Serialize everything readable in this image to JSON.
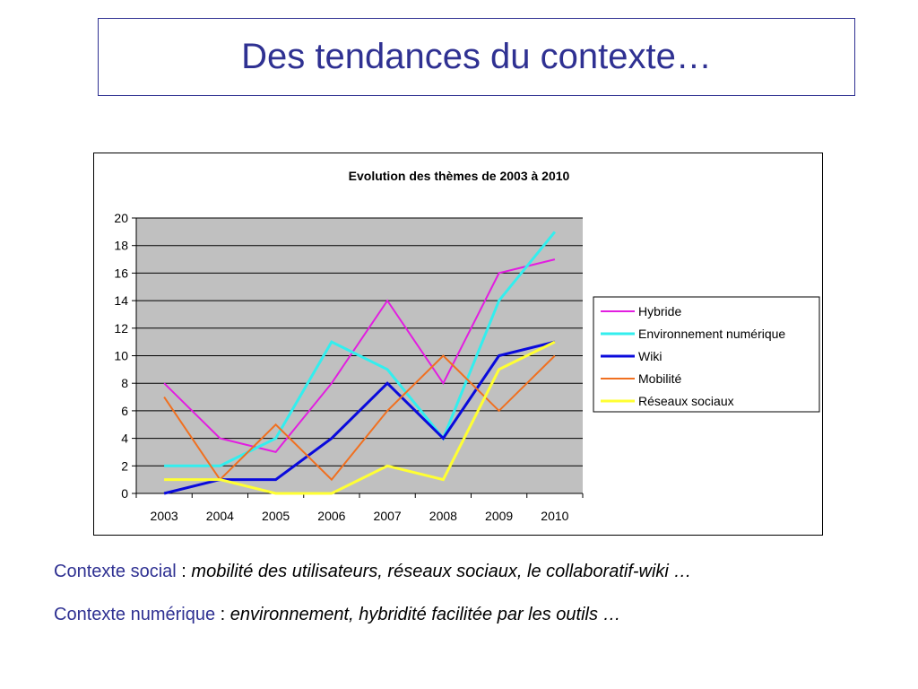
{
  "slide": {
    "title": "Des tendances du contexte…"
  },
  "chart_data": {
    "type": "line",
    "title": "Evolution des thèmes de 2003 à 2010",
    "categories": [
      "2003",
      "2004",
      "2005",
      "2006",
      "2007",
      "2008",
      "2009",
      "2010"
    ],
    "ylim": [
      0,
      20
    ],
    "yticks": [
      "0",
      "2",
      "4",
      "6",
      "8",
      "10",
      "12",
      "14",
      "16",
      "18",
      "20"
    ],
    "grid": true,
    "legend_position": "right",
    "series": [
      {
        "name": "Hybride",
        "color": "#e21ee0",
        "values": [
          8,
          4,
          3,
          8,
          14,
          8,
          16,
          17
        ]
      },
      {
        "name": "Environnement numérique",
        "color": "#33eeee",
        "values": [
          2,
          2,
          4,
          11,
          9,
          4,
          14,
          19
        ]
      },
      {
        "name": "Wiki",
        "color": "#0a0adc",
        "values": [
          0,
          1,
          1,
          4,
          8,
          4,
          10,
          11
        ]
      },
      {
        "name": "Mobilité",
        "color": "#f07020",
        "values": [
          7,
          1,
          5,
          1,
          6,
          10,
          6,
          10
        ]
      },
      {
        "name": "Réseaux sociaux",
        "color": "#ffff33",
        "values": [
          1,
          1,
          0,
          0,
          2,
          1,
          9,
          11
        ]
      }
    ],
    "plot_background": "#c0c0c0"
  },
  "notes": [
    {
      "label": "Contexte social",
      "separator": " : ",
      "text": "mobilité des utilisateurs, réseaux sociaux, le collaboratif-wiki …"
    },
    {
      "label": "Contexte numérique",
      "separator": " : ",
      "text": "environnement, hybridité facilitée par les outils …"
    }
  ]
}
